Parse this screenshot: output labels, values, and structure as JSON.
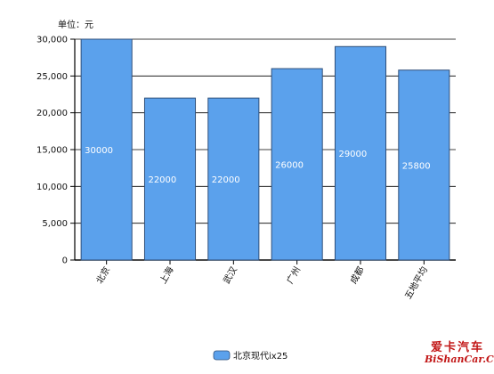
{
  "chart_data": {
    "type": "bar",
    "unit_label": "单位：元",
    "categories": [
      "北京",
      "上海",
      "武汉",
      "广州",
      "成都",
      "五地平均"
    ],
    "series": [
      {
        "name": "北京现代ix25",
        "values": [
          30000,
          22000,
          22000,
          26000,
          29000,
          25800
        ],
        "color": "#5ba1ec"
      }
    ],
    "data_labels": [
      "30000",
      "22000",
      "22000",
      "26000",
      "29000",
      "25800"
    ],
    "y_ticks": [
      0,
      5000,
      10000,
      15000,
      20000,
      25000,
      30000
    ],
    "y_tick_labels": [
      "0",
      "5,000",
      "10,000",
      "15,000",
      "20,000",
      "25,000",
      "30,000"
    ],
    "ylim": [
      0,
      30000
    ],
    "grid": true,
    "legend_position": "bottom-center"
  },
  "watermark": {
    "line1": "爱卡汽车",
    "line2": "BiShanCar.Com"
  },
  "colors": {
    "bar_fill": "#5ba1ec",
    "bar_stroke": "#2f4f7a",
    "grid": "#000000",
    "text": "#111111",
    "watermark": "#c21818"
  }
}
